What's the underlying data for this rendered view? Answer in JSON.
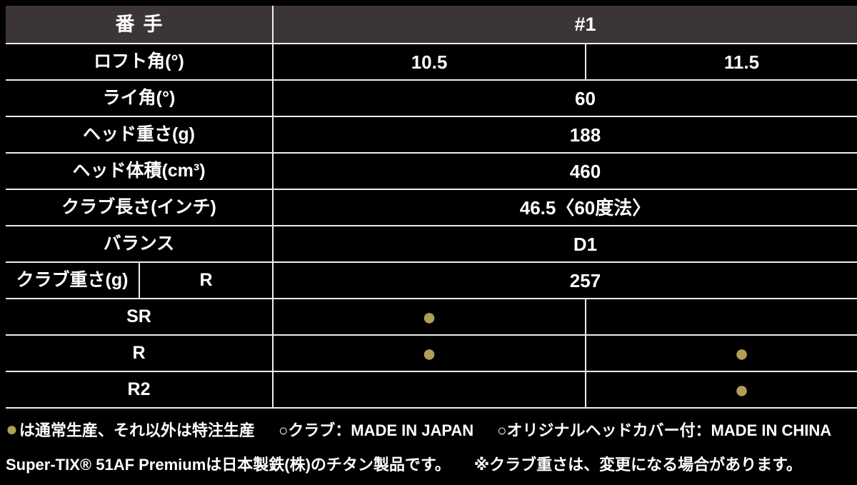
{
  "header": {
    "col_label": "番手",
    "col_value": "#1"
  },
  "rows": {
    "loft": {
      "label": "ロフト角(°)",
      "values": [
        "10.5",
        "11.5"
      ]
    },
    "lie": {
      "label": "ライ角(°)",
      "value": "60"
    },
    "head_weight": {
      "label": "ヘッド重さ(g)",
      "value": "188"
    },
    "head_volume": {
      "label": "ヘッド体積(cm³)",
      "value": "460"
    },
    "club_length": {
      "label": "クラブ長さ(インチ)",
      "value": "46.5〈60度法〉"
    },
    "balance": {
      "label": "バランス",
      "value": "D1"
    },
    "club_weight": {
      "label": "クラブ重さ(g)",
      "sub_label": "R",
      "value": "257"
    },
    "flex_sr": {
      "label": "SR",
      "col1": "●",
      "col2": ""
    },
    "flex_r": {
      "label": "R",
      "col1": "●",
      "col2": "●"
    },
    "flex_r2": {
      "label": "R2",
      "col1": "",
      "col2": "●"
    }
  },
  "footer": {
    "legend_dot": "●",
    "legend_text": "は通常生産、それ以外は特注生産",
    "made_club": "○クラブ：MADE IN JAPAN",
    "made_cover": "○オリジナルヘッドカバー付：MADE IN CHINA",
    "material_note": "Super-TIX® 51AF Premiumは日本製鉄(株)のチタン製品です。",
    "weight_note": "※クラブ重さは、変更になる場合があります。"
  },
  "colors": {
    "accent_gold": "#b29e55",
    "header_bg": "#3b3635",
    "border": "#ededed",
    "background": "#000000",
    "text": "#ffffff"
  }
}
